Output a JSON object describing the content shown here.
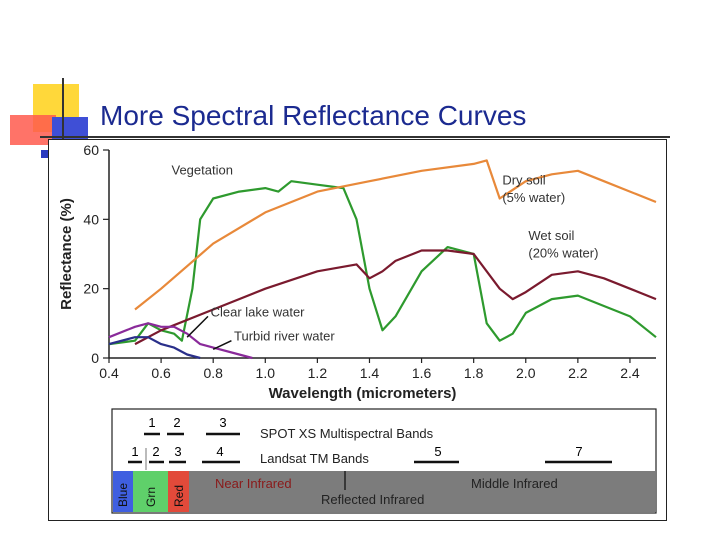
{
  "slide": {
    "title": "More Spectral Reflectance Curves"
  },
  "colors": {
    "title": "#1b2a90",
    "vegetation": "#2e9a2e",
    "dry_soil": "#e8893a",
    "wet_soil": "#7a1a2e",
    "clear_water": "#2a2f8a",
    "turbid_water": "#8a2a9a"
  },
  "chart_data": {
    "type": "line",
    "xlabel": "Wavelength (micrometers)",
    "ylabel": "Reflectance (%)",
    "xlim": [
      0.4,
      2.5
    ],
    "ylim": [
      0,
      60
    ],
    "xticks": [
      "0.4",
      "0.6",
      "0.8",
      "1.0",
      "1.2",
      "1.4",
      "1.6",
      "1.8",
      "2.0",
      "2.2",
      "2.4"
    ],
    "yticks": [
      "0",
      "20",
      "40",
      "60"
    ],
    "series": [
      {
        "name": "Vegetation",
        "label": "Vegetation",
        "color": "#2e9a2e",
        "x": [
          0.4,
          0.5,
          0.55,
          0.6,
          0.65,
          0.68,
          0.72,
          0.75,
          0.8,
          0.9,
          1.0,
          1.05,
          1.1,
          1.2,
          1.3,
          1.35,
          1.4,
          1.45,
          1.5,
          1.6,
          1.7,
          1.8,
          1.85,
          1.9,
          1.95,
          2.0,
          2.1,
          2.2,
          2.3,
          2.4,
          2.5
        ],
        "y": [
          4,
          5,
          10,
          8,
          7,
          5,
          20,
          40,
          46,
          48,
          49,
          48,
          51,
          50,
          49,
          40,
          20,
          8,
          12,
          25,
          32,
          30,
          10,
          5,
          7,
          13,
          17,
          18,
          15,
          12,
          6
        ]
      },
      {
        "name": "Dry soil (5% water)",
        "label": "Dry soil",
        "sublabel": "(5% water)",
        "color": "#e8893a",
        "x": [
          0.5,
          0.6,
          0.8,
          1.0,
          1.2,
          1.4,
          1.6,
          1.8,
          1.85,
          1.9,
          2.0,
          2.1,
          2.2,
          2.3,
          2.4,
          2.5
        ],
        "y": [
          14,
          20,
          33,
          42,
          48,
          51,
          54,
          56,
          57,
          46,
          51,
          53,
          54,
          51,
          48,
          45
        ]
      },
      {
        "name": "Wet soil (20% water)",
        "label": "Wet soil",
        "sublabel": "(20% water)",
        "color": "#7a1a2e",
        "x": [
          0.5,
          0.6,
          0.8,
          1.0,
          1.2,
          1.35,
          1.4,
          1.45,
          1.5,
          1.6,
          1.7,
          1.8,
          1.9,
          1.95,
          2.0,
          2.1,
          2.2,
          2.3,
          2.4,
          2.5
        ],
        "y": [
          4,
          8,
          14,
          20,
          25,
          27,
          23,
          25,
          28,
          31,
          31,
          30,
          20,
          17,
          19,
          24,
          25,
          23,
          20,
          17
        ]
      },
      {
        "name": "Clear lake water",
        "label": "Clear lake water",
        "color": "#2a2f8a",
        "x": [
          0.4,
          0.5,
          0.55,
          0.6,
          0.65,
          0.7,
          0.75
        ],
        "y": [
          4,
          6,
          6,
          4,
          3,
          1,
          0
        ]
      },
      {
        "name": "Turbid river water",
        "label": "Turbid river water",
        "color": "#8a2a9a",
        "x": [
          0.4,
          0.5,
          0.55,
          0.6,
          0.65,
          0.7,
          0.75,
          0.8,
          0.9,
          0.95
        ],
        "y": [
          6,
          9,
          10,
          9,
          9,
          7,
          4,
          3,
          1,
          0
        ]
      }
    ]
  },
  "bands": {
    "spot": {
      "label": "SPOT XS Multispectral Bands",
      "numbers": [
        "1",
        "2",
        "3"
      ]
    },
    "landsat": {
      "label": "Landsat TM Bands",
      "numbers": [
        "1",
        "2",
        "3",
        "4",
        "5",
        "7"
      ]
    },
    "regions": {
      "blue": "Blue",
      "green": "Grn",
      "red": "Red",
      "near_ir": "Near Infrared",
      "middle_ir": "Middle Infrared",
      "reflected_ir": "Reflected Infrared"
    }
  }
}
